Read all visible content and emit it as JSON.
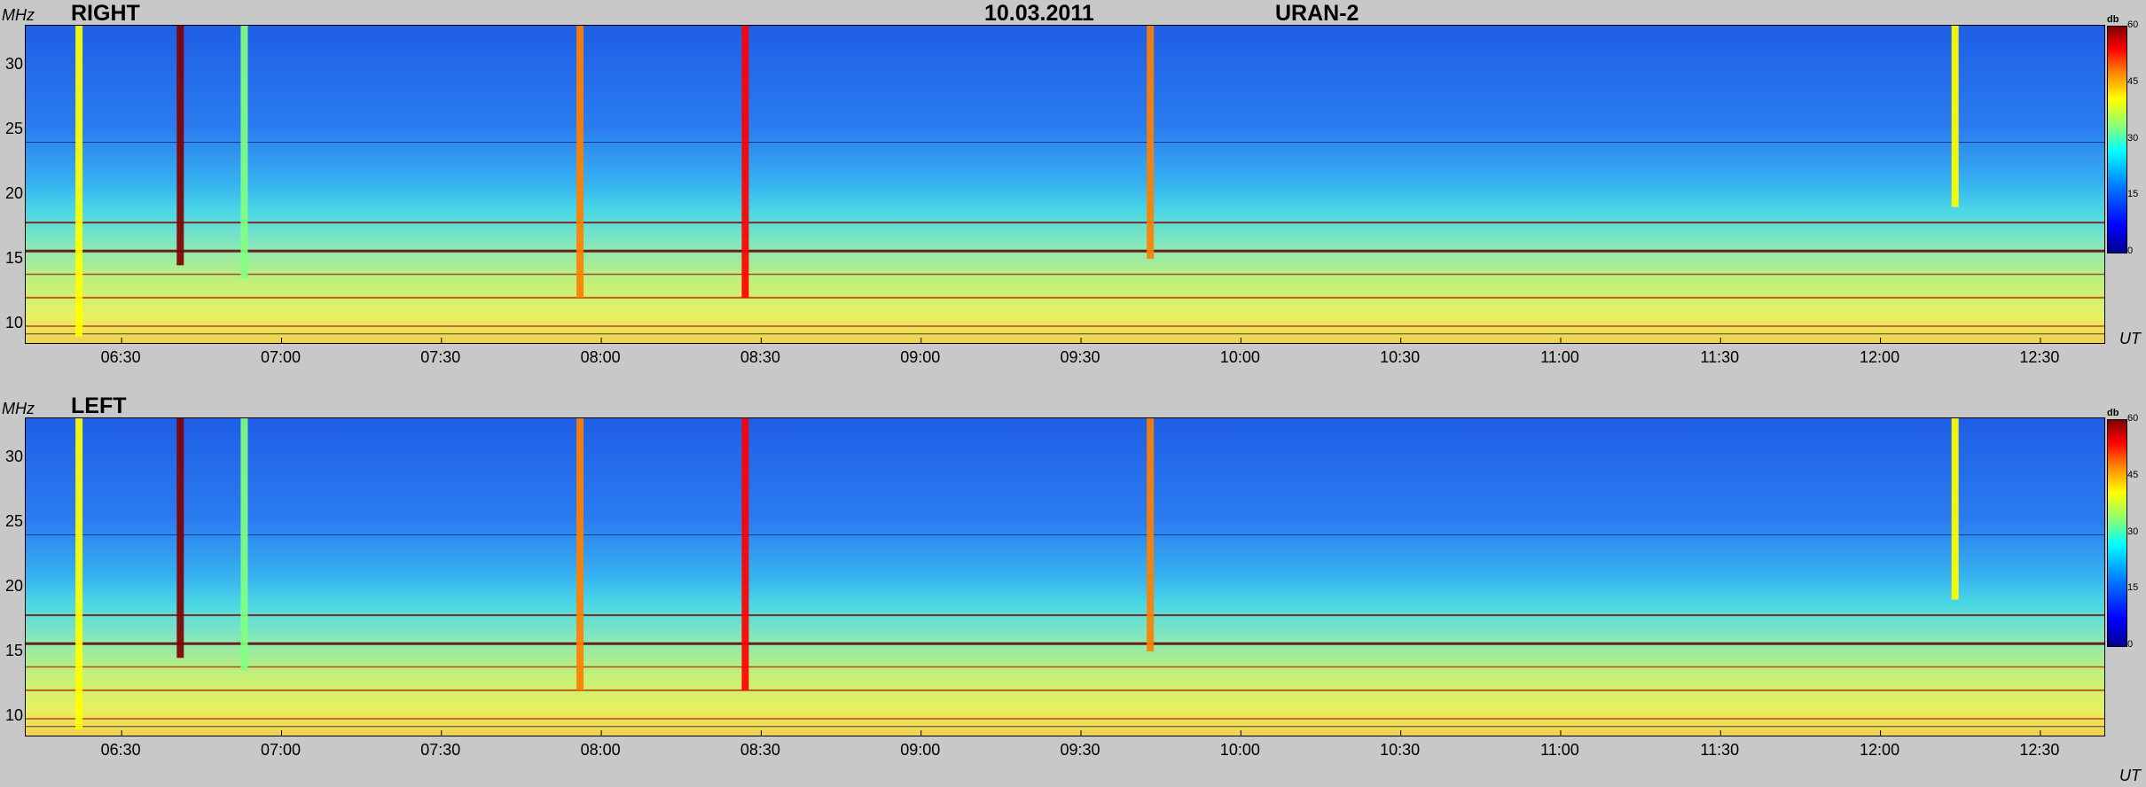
{
  "header": {
    "date": "10.03.2011",
    "instrument": "URAN-2"
  },
  "chart_data": [
    {
      "type": "heatmap",
      "title": "RIGHT",
      "ylabel": "MHz",
      "xlabel": "UT",
      "y_ticks": [
        "10",
        "15",
        "20",
        "25",
        "30"
      ],
      "ylim": [
        8.5,
        33
      ],
      "x_ticks": [
        "06:30",
        "07:00",
        "07:30",
        "08:00",
        "08:30",
        "09:00",
        "09:30",
        "10:00",
        "10:30",
        "11:00",
        "11:30",
        "12:00",
        "12:30"
      ],
      "xlim": [
        "06:12",
        "12:42"
      ],
      "colorbar": {
        "label": "db",
        "ticks": [
          "0",
          "15",
          "30",
          "45",
          "60"
        ],
        "range": [
          0,
          60
        ]
      },
      "bursts": [
        {
          "time": "06:22",
          "f_low": 9,
          "f_high": 33,
          "intensity_db": 40
        },
        {
          "time": "06:41",
          "f_low": 14.5,
          "f_high": 33,
          "intensity_db": 58
        },
        {
          "time": "06:53",
          "f_low": 13.5,
          "f_high": 33,
          "intensity_db": 30
        },
        {
          "time": "07:56",
          "f_low": 12,
          "f_high": 33,
          "intensity_db": 45
        },
        {
          "time": "08:27",
          "f_low": 12,
          "f_high": 33,
          "intensity_db": 50
        },
        {
          "time": "09:43",
          "f_low": 15,
          "f_high": 33,
          "intensity_db": 42
        },
        {
          "time": "12:14",
          "f_low": 19,
          "f_high": 33,
          "intensity_db": 38
        }
      ]
    },
    {
      "type": "heatmap",
      "title": "LEFT",
      "ylabel": "MHz",
      "xlabel": "UT",
      "y_ticks": [
        "10",
        "15",
        "20",
        "25",
        "30"
      ],
      "ylim": [
        8.5,
        33
      ],
      "x_ticks": [
        "06:30",
        "07:00",
        "07:30",
        "08:00",
        "08:30",
        "09:00",
        "09:30",
        "10:00",
        "10:30",
        "11:00",
        "11:30",
        "12:00",
        "12:30"
      ],
      "xlim": [
        "06:12",
        "12:42"
      ],
      "colorbar": {
        "label": "db",
        "ticks": [
          "0",
          "15",
          "30",
          "45",
          "60"
        ],
        "range": [
          0,
          60
        ]
      },
      "bursts": [
        {
          "time": "06:22",
          "f_low": 9,
          "f_high": 33,
          "intensity_db": 40
        },
        {
          "time": "06:41",
          "f_low": 14.5,
          "f_high": 33,
          "intensity_db": 58
        },
        {
          "time": "06:53",
          "f_low": 13.5,
          "f_high": 33,
          "intensity_db": 30
        },
        {
          "time": "07:56",
          "f_low": 12,
          "f_high": 33,
          "intensity_db": 45
        },
        {
          "time": "08:27",
          "f_low": 12,
          "f_high": 33,
          "intensity_db": 50
        },
        {
          "time": "09:43",
          "f_low": 15,
          "f_high": 33,
          "intensity_db": 42
        },
        {
          "time": "12:14",
          "f_low": 19,
          "f_high": 33,
          "intensity_db": 38
        }
      ]
    }
  ]
}
